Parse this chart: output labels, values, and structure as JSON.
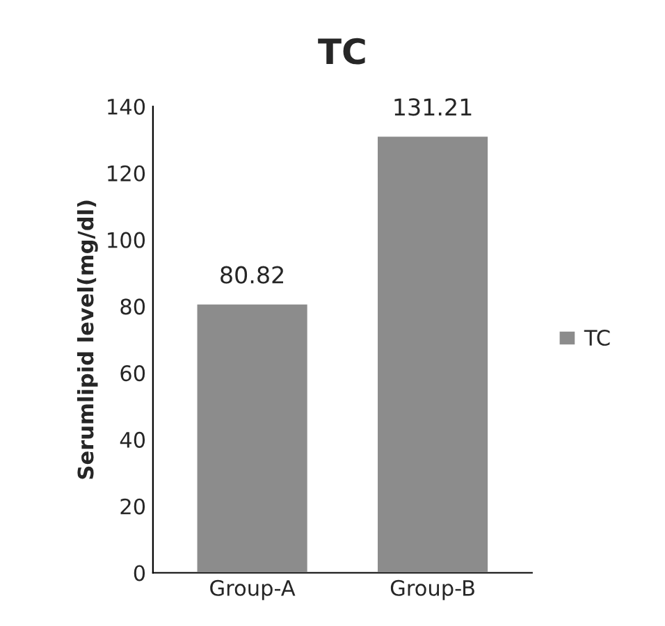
{
  "chart_data": {
    "type": "bar",
    "title": "TC",
    "ylabel": "Serumlipid level(mg/dl)",
    "categories": [
      "Group-A",
      "Group-B"
    ],
    "series": [
      {
        "name": "TC",
        "color": "#8c8c8c",
        "values": [
          80.82,
          131.21
        ]
      }
    ],
    "ylim": [
      0,
      140
    ],
    "yticks": [
      0,
      20,
      40,
      60,
      80,
      100,
      120,
      140
    ],
    "data_labels": true,
    "grid": false,
    "legend": "right"
  }
}
